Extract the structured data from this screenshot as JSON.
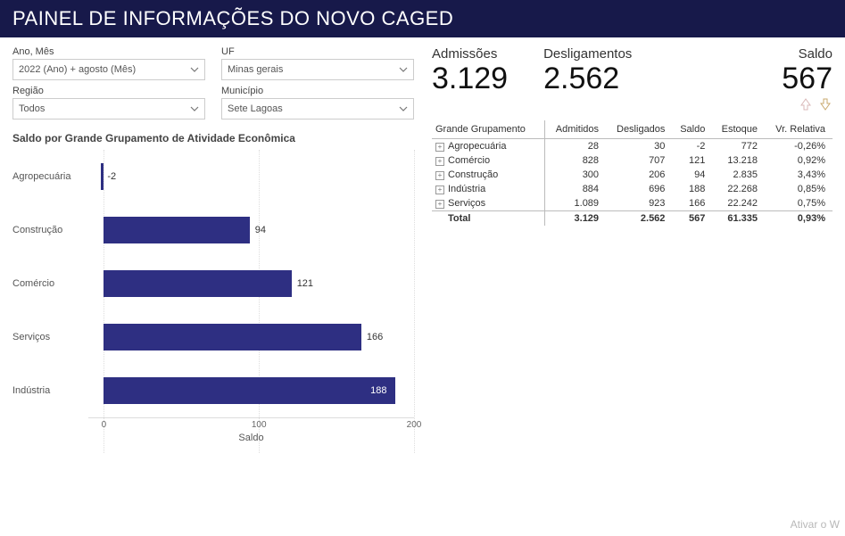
{
  "header": {
    "title": "PAINEL DE INFORMAÇÕES DO NOVO CAGED"
  },
  "filters": {
    "ano_mes": {
      "label": "Ano, Mês",
      "value": "2022 (Ano) + agosto (Mês)"
    },
    "uf": {
      "label": "UF",
      "value": "Minas gerais"
    },
    "regiao": {
      "label": "Região",
      "value": "Todos"
    },
    "municipio": {
      "label": "Município",
      "value": "Sete Lagoas"
    }
  },
  "kpis": {
    "admissoes": {
      "label": "Admissões",
      "value": "3.129"
    },
    "desligamentos": {
      "label": "Desligamentos",
      "value": "2.562"
    },
    "saldo": {
      "label": "Saldo",
      "value": "567"
    }
  },
  "chart": {
    "title": "Saldo por Grande Grupamento de Atividade Econômica",
    "type": "bar-horizontal",
    "x_label": "Saldo",
    "x_min": -10,
    "x_max": 200,
    "x_ticks": [
      0,
      100,
      200
    ],
    "bar_color": "#2e2f82",
    "background_color": "#ffffff",
    "grid_color": "#dddddd",
    "title_fontsize": 12,
    "label_fontsize": 11,
    "categories": [
      "Agropecuária",
      "Construção",
      "Comércio",
      "Serviços",
      "Indústria"
    ],
    "values": [
      -2,
      94,
      121,
      166,
      188
    ],
    "value_labels": [
      "-2",
      "94",
      "121",
      "166",
      "188"
    ]
  },
  "table": {
    "columns": [
      "Grande Grupamento",
      "Admitidos",
      "Desligados",
      "Saldo",
      "Estoque",
      "Vr. Relativa"
    ],
    "rows": [
      [
        "Agropecuária",
        "28",
        "30",
        "-2",
        "772",
        "-0,26%"
      ],
      [
        "Comércio",
        "828",
        "707",
        "121",
        "13.218",
        "0,92%"
      ],
      [
        "Construção",
        "300",
        "206",
        "94",
        "2.835",
        "3,43%"
      ],
      [
        "Indústria",
        "884",
        "696",
        "188",
        "22.268",
        "0,85%"
      ],
      [
        "Serviços",
        "1.089",
        "923",
        "166",
        "22.242",
        "0,75%"
      ]
    ],
    "total": [
      "Total",
      "3.129",
      "2.562",
      "567",
      "61.335",
      "0,93%"
    ]
  },
  "watermark": "Ativar o W"
}
